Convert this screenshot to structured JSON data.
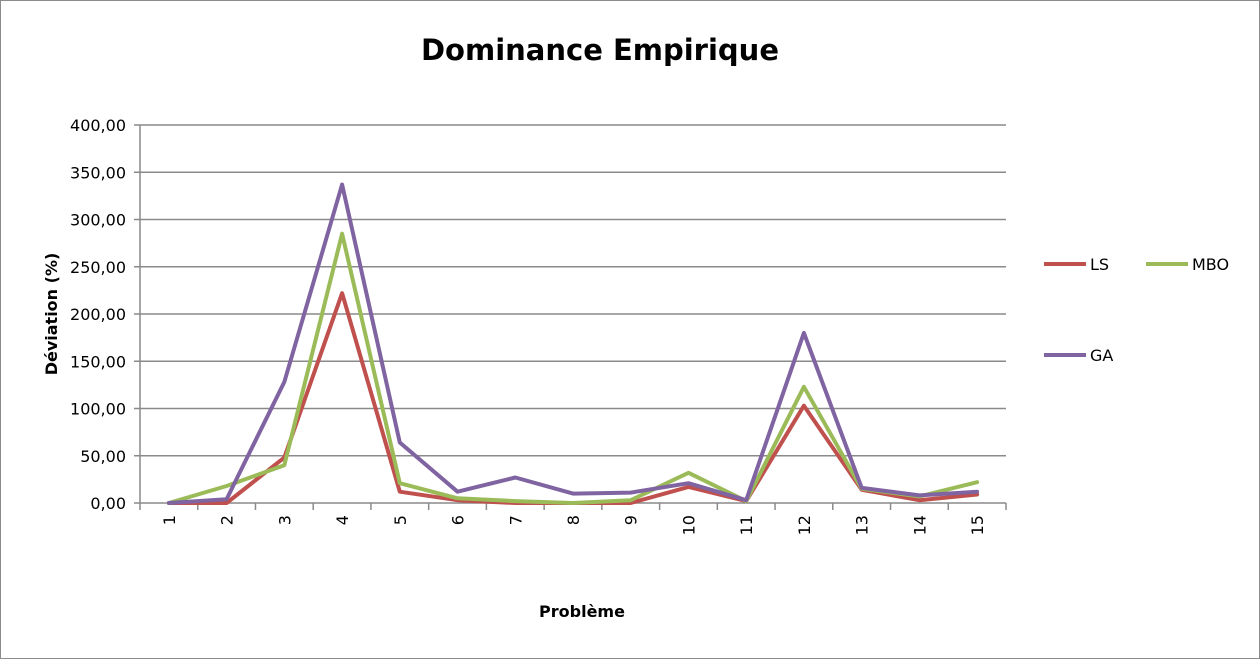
{
  "chart_data": {
    "type": "line",
    "title": "Dominance Empirique",
    "xlabel": "Problème",
    "ylabel": "Déviation (%)",
    "categories": [
      "1",
      "2",
      "3",
      "4",
      "5",
      "6",
      "7",
      "8",
      "9",
      "10",
      "11",
      "12",
      "13",
      "14",
      "15"
    ],
    "ylim": [
      0,
      400
    ],
    "yticks": [
      "0,00",
      "50,00",
      "100,00",
      "150,00",
      "200,00",
      "250,00",
      "300,00",
      "350,00",
      "400,00"
    ],
    "grid": true,
    "legend_position": "right",
    "series": [
      {
        "name": "LS",
        "color": "#c0504d",
        "values": [
          0,
          0,
          48,
          222,
          12,
          3,
          0,
          0,
          0,
          17,
          2,
          103,
          14,
          3,
          9
        ]
      },
      {
        "name": "MBO",
        "color": "#9bbb59",
        "values": [
          0,
          18,
          40,
          285,
          21,
          5,
          2,
          0,
          3,
          32,
          2,
          123,
          15,
          7,
          22
        ]
      },
      {
        "name": "GA",
        "color": "#8064a2",
        "values": [
          0,
          4,
          128,
          337,
          64,
          12,
          27,
          10,
          11,
          21,
          3,
          180,
          16,
          8,
          12
        ]
      }
    ]
  }
}
